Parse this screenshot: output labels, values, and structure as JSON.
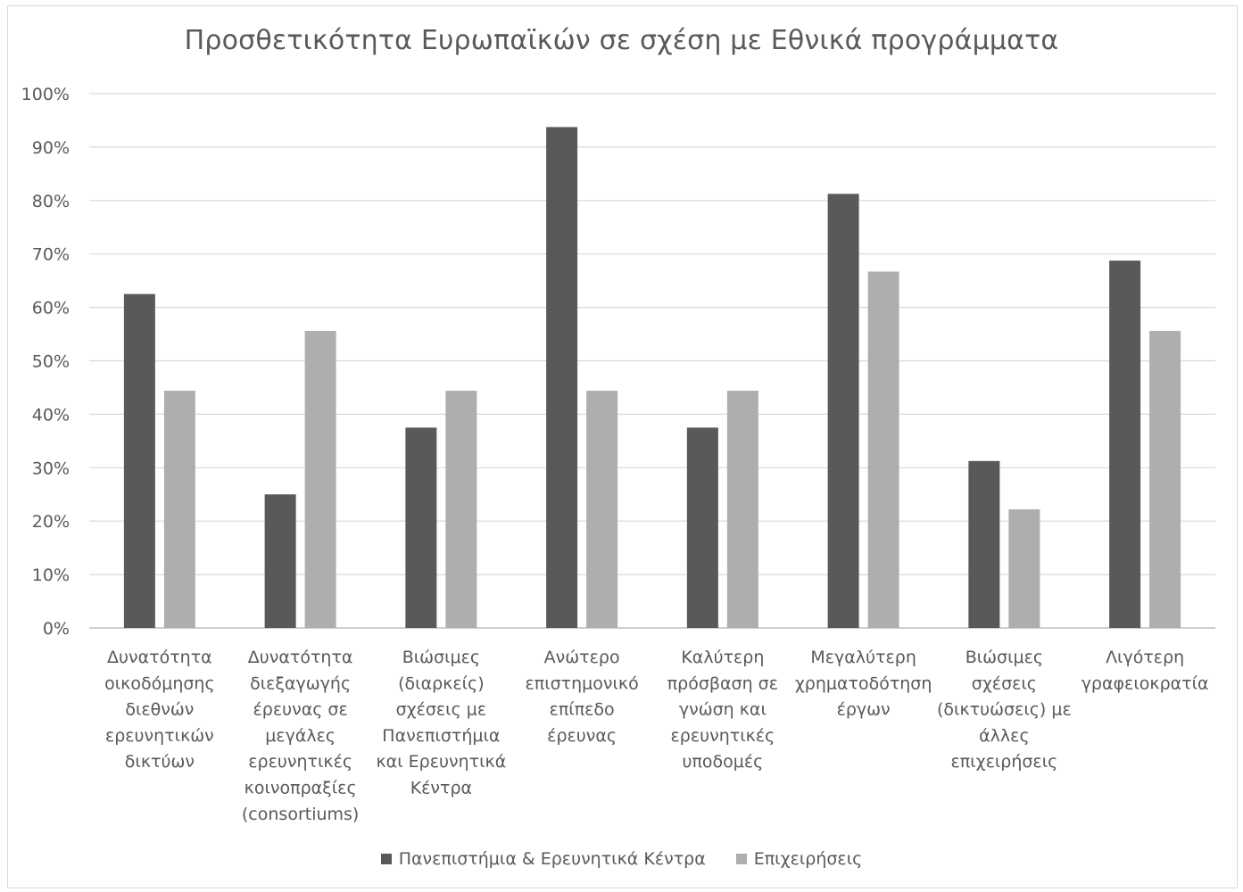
{
  "chart_data": {
    "type": "bar",
    "title": "Προσθετικότητα Ευρωπαϊκών σε σχέση με Εθνικά προγράμματα",
    "xlabel": "",
    "ylabel": "",
    "ylim": [
      0,
      1
    ],
    "y_tick_labels": [
      "0%",
      "10%",
      "20%",
      "30%",
      "40%",
      "50%",
      "60%",
      "70%",
      "80%",
      "90%",
      "100%"
    ],
    "grid": true,
    "legend_position": "bottom",
    "categories": [
      [
        "Δυνατότητα",
        "οικοδόμησης",
        "διεθνών",
        "ερευνητικών",
        "δικτύων"
      ],
      [
        "Δυνατότητα",
        "διεξαγωγής",
        "έρευνας σε",
        "μεγάλες",
        "ερευνητικές",
        "κοινοπραξίες",
        "(consortiums)"
      ],
      [
        "Βιώσιμες",
        "(διαρκείς)",
        "σχέσεις με",
        "Πανεπιστήμια",
        "και Ερευνητικά",
        "Κέντρα"
      ],
      [
        "Ανώτερο",
        "επιστημονικό",
        "επίπεδο",
        "έρευνας"
      ],
      [
        "Καλύτερη",
        "πρόσβαση σε",
        "γνώση και",
        "ερευνητικές",
        "υποδομές"
      ],
      [
        "Μεγαλύτερη",
        "χρηματοδότηση",
        "έργων"
      ],
      [
        "Βιώσιμες",
        "σχέσεις",
        "(δικτυώσεις) με",
        "άλλες",
        "επιχειρήσεις"
      ],
      [
        "Λιγότερη",
        "γραφειοκρατία"
      ]
    ],
    "series": [
      {
        "name": "Πανεπιστήμια & Ερευνητικά Κέντρα",
        "color": "#595959",
        "values": [
          0.625,
          0.25,
          0.375,
          0.9375,
          0.375,
          0.8125,
          0.3125,
          0.6875
        ]
      },
      {
        "name": "Επιχειρήσεις",
        "color": "#aeaeae",
        "values": [
          0.444,
          0.556,
          0.444,
          0.444,
          0.444,
          0.667,
          0.222,
          0.556
        ]
      }
    ],
    "colors": {
      "grid": "#d9d9d9",
      "axis": "#bfbfbf",
      "text": "#595959"
    }
  }
}
